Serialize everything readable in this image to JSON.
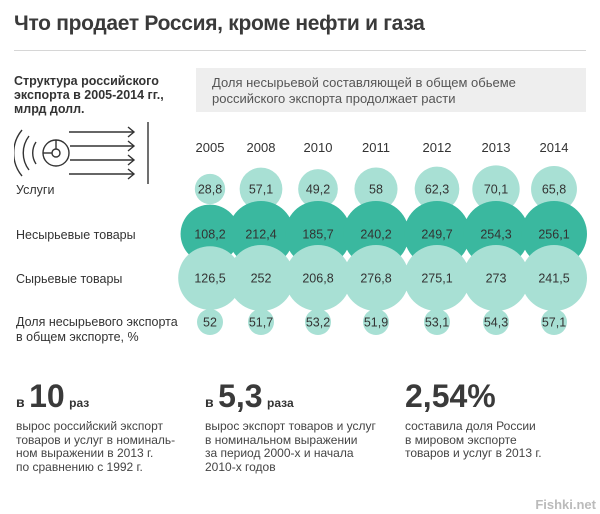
{
  "title": "Что продает Россия, кроме нефти и газа",
  "left_header": "Структура российского экспорта в 2005-2014 гг., млрд долл.",
  "right_header": "Доля несырьевой составляющей в общем обьеме российского экспорта продолжает расти",
  "colors": {
    "light_teal": "#a8e0d4",
    "mid_teal": "#5ccab5",
    "dark_teal": "#3ab89f",
    "text": "#333333"
  },
  "icons": {
    "logo": "export-flow-icon"
  },
  "chart_data": {
    "type": "bubble",
    "categories": [
      "2005",
      "2008",
      "2010",
      "2011",
      "2012",
      "2013",
      "2014"
    ],
    "series": [
      {
        "name": "Услуги",
        "values": [
          "28,8",
          "57,1",
          "49,2",
          "58",
          "62,3",
          "70,1",
          "65,8"
        ]
      },
      {
        "name": "Несырьевые товары",
        "values": [
          "108,2",
          "212,4",
          "185,7",
          "240,2",
          "249,7",
          "254,3",
          "256,1"
        ]
      },
      {
        "name": "Сырьевые товары",
        "values": [
          "126,5",
          "252",
          "206,8",
          "276,8",
          "275,1",
          "273",
          "241,5"
        ]
      },
      {
        "name": "Доля несырьевого экспорта в общем экспорте, %",
        "values": [
          "52",
          "51,7",
          "53,2",
          "51,9",
          "53,1",
          "54,3",
          "57,1"
        ]
      }
    ]
  },
  "stats": [
    {
      "prefix": "в",
      "number": "10",
      "suffix": "раз",
      "text": "вырос российский экспорт\nтоваров и услуг в номиналь-\nном выражении в 2013 г.\nпо сравнению с 1992 г."
    },
    {
      "prefix": "в",
      "number": "5,3",
      "suffix": "раза",
      "text": "вырос экспорт товаров и услуг\nв номинальном выражении\nза период 2000-х и начала\n2010-х годов"
    },
    {
      "prefix": "",
      "number": "2,54%",
      "suffix": "",
      "text": "составила доля России\nв мировом экспорте\nтоваров и услуг в 2013 г."
    }
  ],
  "watermark": "Fishki.net"
}
